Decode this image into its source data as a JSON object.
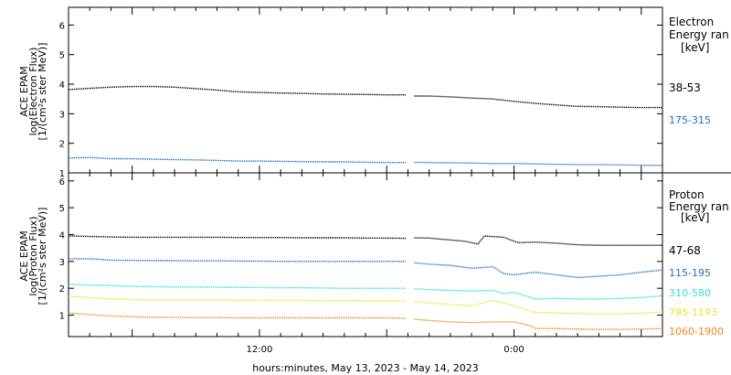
{
  "chart_data": [
    {
      "type": "scatter",
      "panel": "electron",
      "ylabel": [
        "ACE EPAM",
        "log(Electron Flux)",
        "[1/(cm²s ster MeV)]"
      ],
      "ylim": [
        1,
        6.6
      ],
      "yticks": [
        1,
        2,
        3,
        4,
        5,
        6
      ],
      "legend_title": [
        "Electron",
        "Energy ran",
        "[keV]"
      ],
      "series": [
        {
          "name": "38-53",
          "color": "#000000",
          "points": [
            [
              0,
              3.82
            ],
            [
              1,
              3.86
            ],
            [
              2,
              3.9
            ],
            [
              3,
              3.92
            ],
            [
              4,
              3.92
            ],
            [
              5,
              3.9
            ],
            [
              6,
              3.85
            ],
            [
              7,
              3.8
            ],
            [
              8,
              3.74
            ],
            [
              9,
              3.72
            ],
            [
              10,
              3.7
            ],
            [
              11,
              3.69
            ],
            [
              12,
              3.67
            ],
            [
              13,
              3.66
            ],
            [
              14,
              3.65
            ],
            [
              15,
              3.64
            ],
            [
              15.9,
              3.64
            ],
            [
              16.3,
              3.6
            ],
            [
              17,
              3.6
            ],
            [
              18,
              3.57
            ],
            [
              19,
              3.53
            ],
            [
              20,
              3.5
            ],
            [
              21,
              3.42
            ],
            [
              22,
              3.35
            ],
            [
              23,
              3.3
            ],
            [
              24,
              3.25
            ],
            [
              25,
              3.24
            ],
            [
              26,
              3.22
            ],
            [
              27,
              3.21
            ],
            [
              28,
              3.21
            ]
          ]
        },
        {
          "name": "175-315",
          "color": "#1f6fc0",
          "points": [
            [
              0,
              1.5
            ],
            [
              1,
              1.52
            ],
            [
              2,
              1.48
            ],
            [
              3,
              1.48
            ],
            [
              4,
              1.46
            ],
            [
              5,
              1.45
            ],
            [
              6,
              1.44
            ],
            [
              7,
              1.42
            ],
            [
              8,
              1.4
            ],
            [
              9,
              1.4
            ],
            [
              10,
              1.39
            ],
            [
              11,
              1.38
            ],
            [
              12,
              1.37
            ],
            [
              13,
              1.37
            ],
            [
              14,
              1.36
            ],
            [
              15,
              1.35
            ],
            [
              15.9,
              1.35
            ],
            [
              16.3,
              1.36
            ],
            [
              17,
              1.35
            ],
            [
              18,
              1.34
            ],
            [
              19,
              1.33
            ],
            [
              20,
              1.32
            ],
            [
              21,
              1.32
            ],
            [
              22,
              1.3
            ],
            [
              23,
              1.29
            ],
            [
              24,
              1.28
            ],
            [
              25,
              1.28
            ],
            [
              26,
              1.27
            ],
            [
              27,
              1.26
            ],
            [
              28,
              1.25
            ]
          ]
        }
      ]
    },
    {
      "type": "scatter",
      "panel": "proton",
      "ylabel": [
        "ACE EPAM",
        "log(Proton Flux)",
        "[1/(cm²s ster MeV)]"
      ],
      "ylim": [
        0.2,
        6.3
      ],
      "yticks": [
        1,
        2,
        3,
        4,
        5,
        6
      ],
      "legend_title": [
        "Proton",
        "Energy ran",
        "[keV]"
      ],
      "series": [
        {
          "name": "47-68",
          "color": "#000000",
          "points": [
            [
              0,
              3.95
            ],
            [
              1,
              3.93
            ],
            [
              2,
              3.91
            ],
            [
              3,
              3.9
            ],
            [
              4,
              3.9
            ],
            [
              5,
              3.9
            ],
            [
              6,
              3.9
            ],
            [
              7,
              3.9
            ],
            [
              8,
              3.89
            ],
            [
              9,
              3.89
            ],
            [
              10,
              3.89
            ],
            [
              11,
              3.88
            ],
            [
              12,
              3.88
            ],
            [
              13,
              3.88
            ],
            [
              14,
              3.87
            ],
            [
              15,
              3.87
            ],
            [
              15.9,
              3.86
            ],
            [
              16.3,
              3.88
            ],
            [
              17,
              3.87
            ],
            [
              18,
              3.8
            ],
            [
              18.7,
              3.75
            ],
            [
              19.3,
              3.65
            ],
            [
              19.6,
              3.95
            ],
            [
              20.5,
              3.9
            ],
            [
              21.2,
              3.7
            ],
            [
              22,
              3.72
            ],
            [
              23,
              3.68
            ],
            [
              24,
              3.62
            ],
            [
              25,
              3.6
            ],
            [
              26,
              3.6
            ],
            [
              27,
              3.6
            ],
            [
              28,
              3.6
            ]
          ]
        },
        {
          "name": "115-195",
          "color": "#1f6fc0",
          "points": [
            [
              0,
              3.1
            ],
            [
              1,
              3.1
            ],
            [
              2,
              3.05
            ],
            [
              3,
              3.04
            ],
            [
              4,
              3.03
            ],
            [
              5,
              3.03
            ],
            [
              6,
              3.02
            ],
            [
              7,
              3.02
            ],
            [
              8,
              3.01
            ],
            [
              9,
              3.01
            ],
            [
              10,
              3.0
            ],
            [
              11,
              3.0
            ],
            [
              12,
              3.0
            ],
            [
              13,
              3.0
            ],
            [
              14,
              3.0
            ],
            [
              15,
              3.0
            ],
            [
              15.9,
              3.0
            ],
            [
              16.3,
              2.95
            ],
            [
              17,
              2.9
            ],
            [
              18,
              2.85
            ],
            [
              19,
              2.75
            ],
            [
              20,
              2.8
            ],
            [
              20.5,
              2.55
            ],
            [
              21,
              2.5
            ],
            [
              22,
              2.6
            ],
            [
              23,
              2.5
            ],
            [
              24,
              2.4
            ],
            [
              25,
              2.45
            ],
            [
              26,
              2.5
            ],
            [
              27,
              2.6
            ],
            [
              28,
              2.68
            ]
          ]
        },
        {
          "name": "310-580",
          "color": "#2ee0d6",
          "points": [
            [
              0,
              2.15
            ],
            [
              1,
              2.12
            ],
            [
              2,
              2.1
            ],
            [
              3,
              2.07
            ],
            [
              4,
              2.06
            ],
            [
              5,
              2.05
            ],
            [
              6,
              2.05
            ],
            [
              7,
              2.04
            ],
            [
              8,
              2.03
            ],
            [
              9,
              2.03
            ],
            [
              10,
              2.02
            ],
            [
              11,
              2.02
            ],
            [
              12,
              2.01
            ],
            [
              13,
              2.0
            ],
            [
              14,
              2.0
            ],
            [
              15,
              2.0
            ],
            [
              15.9,
              2.0
            ],
            [
              16.3,
              1.98
            ],
            [
              17,
              1.95
            ],
            [
              18,
              1.92
            ],
            [
              19,
              1.9
            ],
            [
              20,
              1.92
            ],
            [
              20.5,
              1.8
            ],
            [
              21,
              1.85
            ],
            [
              22,
              1.6
            ],
            [
              23,
              1.62
            ],
            [
              24,
              1.6
            ],
            [
              25,
              1.6
            ],
            [
              26,
              1.62
            ],
            [
              27,
              1.66
            ],
            [
              28,
              1.72
            ]
          ]
        },
        {
          "name": "795-1193",
          "color": "#e6e62e",
          "points": [
            [
              0,
              1.7
            ],
            [
              1,
              1.65
            ],
            [
              2,
              1.6
            ],
            [
              3,
              1.58
            ],
            [
              4,
              1.57
            ],
            [
              5,
              1.57
            ],
            [
              6,
              1.56
            ],
            [
              7,
              1.56
            ],
            [
              8,
              1.55
            ],
            [
              9,
              1.55
            ],
            [
              10,
              1.55
            ],
            [
              11,
              1.55
            ],
            [
              12,
              1.54
            ],
            [
              13,
              1.54
            ],
            [
              14,
              1.54
            ],
            [
              15,
              1.53
            ],
            [
              15.9,
              1.53
            ],
            [
              16.3,
              1.5
            ],
            [
              17,
              1.45
            ],
            [
              18,
              1.4
            ],
            [
              19,
              1.35
            ],
            [
              20,
              1.55
            ],
            [
              20.5,
              1.45
            ],
            [
              21,
              1.35
            ],
            [
              22,
              1.1
            ],
            [
              23,
              1.08
            ],
            [
              24,
              1.06
            ],
            [
              25,
              1.05
            ],
            [
              26,
              1.05
            ],
            [
              27,
              1.07
            ],
            [
              28,
              1.12
            ]
          ]
        },
        {
          "name": "1060-1900",
          "color": "#e88a1c",
          "points": [
            [
              0,
              1.08
            ],
            [
              1,
              1.02
            ],
            [
              2,
              0.97
            ],
            [
              3,
              0.94
            ],
            [
              4,
              0.92
            ],
            [
              5,
              0.92
            ],
            [
              6,
              0.91
            ],
            [
              7,
              0.91
            ],
            [
              8,
              0.9
            ],
            [
              9,
              0.9
            ],
            [
              10,
              0.9
            ],
            [
              11,
              0.9
            ],
            [
              12,
              0.9
            ],
            [
              13,
              0.9
            ],
            [
              14,
              0.9
            ],
            [
              15,
              0.9
            ],
            [
              15.9,
              0.88
            ],
            [
              16.3,
              0.85
            ],
            [
              17,
              0.8
            ],
            [
              18,
              0.75
            ],
            [
              19,
              0.72
            ],
            [
              20,
              0.75
            ],
            [
              21,
              0.75
            ],
            [
              21.8,
              0.6
            ],
            [
              22,
              0.5
            ],
            [
              23,
              0.5
            ],
            [
              24,
              0.48
            ],
            [
              25,
              0.47
            ],
            [
              26,
              0.47
            ],
            [
              27,
              0.48
            ],
            [
              28,
              0.5
            ]
          ]
        }
      ]
    }
  ],
  "xaxis": {
    "label": "hours:minutes, May 13, 2023 - May 14, 2023",
    "start_hour": 3,
    "end_hour": 31,
    "ticks": [
      {
        "hour": 12,
        "label": "12:00"
      },
      {
        "hour": 24,
        "label": "0:00"
      }
    ]
  }
}
